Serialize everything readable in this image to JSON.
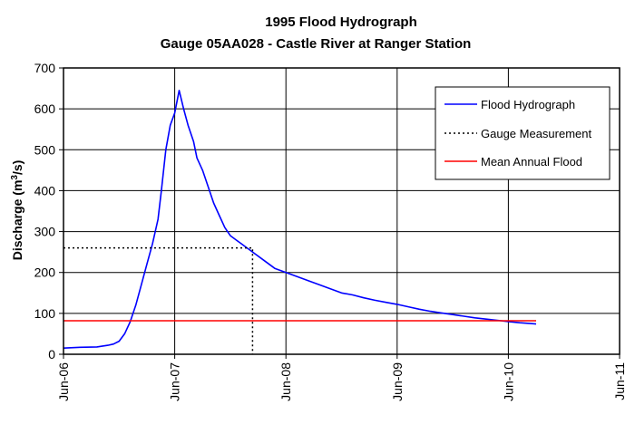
{
  "chart_data": {
    "type": "line",
    "title": "1995 Flood Hydrograph",
    "subtitle": "Gauge 05AA028 - Castle River at Ranger Station",
    "ylabel": "Discharge (m",
    "ylabel_sup": "3",
    "ylabel_end": "/s)",
    "xlabel": "",
    "ylim": [
      0,
      700
    ],
    "xlim": [
      6,
      11
    ],
    "y_ticks": [
      0,
      100,
      200,
      300,
      400,
      500,
      600,
      700
    ],
    "x_ticks": [
      {
        "value": 6,
        "label": "Jun-06"
      },
      {
        "value": 7,
        "label": "Jun-07"
      },
      {
        "value": 8,
        "label": "Jun-08"
      },
      {
        "value": 9,
        "label": "Jun-09"
      },
      {
        "value": 10,
        "label": "Jun-10"
      },
      {
        "value": 11,
        "label": "Jun-11"
      }
    ],
    "grid": true,
    "legend_position": "top-right",
    "series": [
      {
        "name": "Flood Hydrograph",
        "color": "#0000ff",
        "style": "solid",
        "x": [
          6.0,
          6.15,
          6.3,
          6.4,
          6.45,
          6.5,
          6.55,
          6.6,
          6.65,
          6.7,
          6.75,
          6.8,
          6.85,
          6.88,
          6.92,
          6.96,
          7.0,
          7.04,
          7.08,
          7.12,
          7.17,
          7.2,
          7.25,
          7.3,
          7.35,
          7.4,
          7.45,
          7.5,
          7.55,
          7.6,
          7.65,
          7.7,
          7.8,
          7.9,
          8.0,
          8.1,
          8.2,
          8.3,
          8.4,
          8.5,
          8.6,
          8.7,
          8.8,
          8.9,
          9.0,
          9.1,
          9.2,
          9.3,
          9.4,
          9.5,
          9.6,
          9.7,
          9.8,
          9.9,
          10.0,
          10.1,
          10.2,
          10.25
        ],
        "y": [
          15,
          17,
          18,
          22,
          25,
          32,
          50,
          80,
          120,
          170,
          220,
          270,
          330,
          400,
          500,
          560,
          590,
          645,
          600,
          560,
          520,
          480,
          450,
          410,
          370,
          340,
          310,
          290,
          280,
          270,
          260,
          250,
          230,
          210,
          200,
          190,
          180,
          170,
          160,
          150,
          145,
          138,
          132,
          127,
          122,
          116,
          110,
          105,
          101,
          97,
          93,
          89,
          86,
          83,
          80,
          77,
          75,
          74
        ]
      },
      {
        "name": "Gauge Measurement",
        "color": "#000000",
        "style": "dotted",
        "x": [
          6.0,
          7.7,
          7.7
        ],
        "y": [
          260,
          260,
          0
        ]
      },
      {
        "name": "Mean Annual Flood",
        "color": "#ff0000",
        "style": "solid",
        "x": [
          6.0,
          10.25
        ],
        "y": [
          82,
          82
        ]
      }
    ]
  }
}
